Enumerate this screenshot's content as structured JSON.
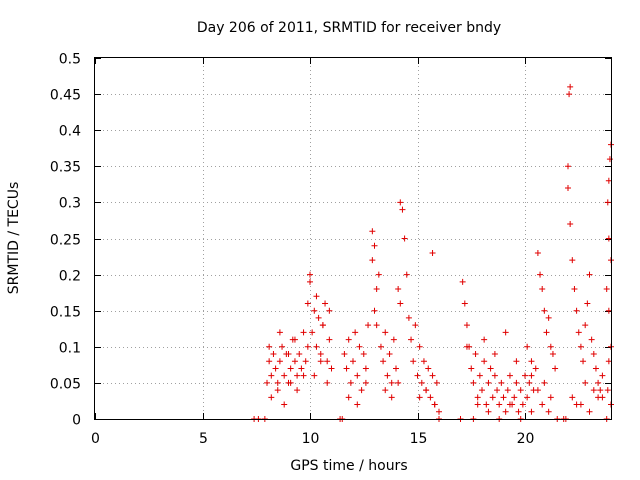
{
  "chart_data": {
    "type": "scatter",
    "title": "Day 206 of 2011, SRMTID for receiver bndy",
    "xlabel": "GPS time / hours",
    "ylabel": "SRMTID / TECUs",
    "xlim": [
      0,
      24
    ],
    "ylim": [
      0,
      0.5
    ],
    "x_ticks": [
      0,
      5,
      10,
      15,
      20
    ],
    "x_tick_labels": [
      "0",
      "5",
      "10",
      "15",
      "20"
    ],
    "y_ticks": [
      0,
      0.05,
      0.1,
      0.15,
      0.2,
      0.25,
      0.3,
      0.35,
      0.4,
      0.45,
      0.5
    ],
    "y_tick_labels": [
      "0",
      "0.05",
      "0.1",
      "0.15",
      "0.2",
      "0.25",
      "0.3",
      "0.35",
      "0.4",
      "0.45",
      "0.5"
    ],
    "grid": true,
    "marker": "plus",
    "series": [
      {
        "name": "SRMTID",
        "color": "#e00000",
        "x": [
          7.4,
          7.6,
          7.9,
          8.1,
          8.0,
          8.1,
          8.2,
          8.3,
          8.4,
          8.5,
          8.6,
          8.7,
          8.8,
          8.9,
          9.0,
          9.1,
          9.2,
          9.3,
          9.4,
          9.5,
          9.6,
          9.7,
          9.8,
          9.9,
          8.2,
          8.5,
          8.8,
          9.1,
          9.4,
          9.7,
          8.6,
          9.0,
          9.3,
          9.9,
          10.0,
          10.0,
          10.1,
          10.2,
          10.3,
          10.4,
          10.5,
          10.6,
          10.7,
          10.8,
          10.9,
          11.0,
          10.2,
          10.5,
          10.8,
          10.3,
          10.6,
          10.9,
          11.4,
          11.5,
          11.6,
          11.7,
          11.8,
          11.9,
          12.0,
          12.1,
          12.2,
          12.3,
          12.4,
          12.5,
          12.6,
          12.7,
          11.8,
          12.2,
          12.6,
          12.9,
          12.9,
          13.0,
          13.1,
          13.2,
          13.0,
          13.1,
          13.3,
          13.4,
          13.5,
          13.6,
          13.7,
          13.8,
          13.9,
          14.0,
          13.5,
          13.8,
          14.1,
          14.2,
          14.3,
          14.1,
          14.2,
          14.4,
          14.5,
          14.6,
          14.7,
          14.8,
          14.9,
          15.0,
          15.1,
          15.2,
          15.3,
          15.4,
          15.5,
          15.6,
          15.7,
          15.8,
          15.9,
          16.0,
          15.1,
          15.4,
          15.8,
          16.0,
          15.7,
          17.0,
          17.1,
          17.2,
          17.3,
          17.4,
          17.5,
          17.6,
          17.7,
          17.8,
          17.9,
          18.0,
          18.1,
          18.2,
          18.3,
          18.4,
          18.5,
          18.6,
          18.7,
          18.8,
          18.9,
          19.0,
          19.1,
          19.2,
          19.3,
          19.4,
          19.5,
          19.6,
          19.7,
          19.8,
          19.9,
          20.0,
          20.1,
          20.2,
          20.3,
          20.4,
          17.3,
          17.8,
          18.3,
          18.8,
          19.3,
          19.8,
          20.3,
          17.6,
          18.1,
          18.6,
          19.1,
          19.6,
          20.1,
          20.5,
          20.6,
          20.7,
          20.8,
          20.9,
          21.0,
          21.1,
          21.2,
          21.3,
          21.4,
          20.3,
          20.6,
          20.9,
          21.2,
          20.8,
          21.1,
          21.5,
          21.8,
          21.9,
          22.0,
          22.0,
          22.05,
          22.1,
          22.1,
          22.2,
          22.3,
          22.4,
          22.5,
          22.6,
          22.7,
          22.8,
          22.9,
          23.0,
          23.1,
          23.2,
          23.3,
          23.4,
          23.5,
          23.6,
          22.2,
          22.6,
          23.0,
          23.4,
          22.4,
          22.8,
          23.2,
          23.6,
          23.8,
          23.85,
          23.9,
          23.95,
          24.0,
          23.9,
          24.0,
          23.8,
          23.9,
          24.0,
          23.9,
          23.85,
          24.0
        ],
        "y": [
          0.0,
          0.0,
          0.0,
          0.08,
          0.05,
          0.1,
          0.06,
          0.09,
          0.07,
          0.05,
          0.08,
          0.1,
          0.06,
          0.09,
          0.05,
          0.07,
          0.11,
          0.08,
          0.06,
          0.09,
          0.07,
          0.12,
          0.08,
          0.1,
          0.03,
          0.04,
          0.02,
          0.05,
          0.04,
          0.06,
          0.12,
          0.09,
          0.11,
          0.16,
          0.19,
          0.2,
          0.12,
          0.15,
          0.1,
          0.14,
          0.09,
          0.13,
          0.16,
          0.08,
          0.11,
          0.07,
          0.06,
          0.08,
          0.05,
          0.17,
          0.13,
          0.15,
          0.0,
          0.0,
          0.09,
          0.07,
          0.11,
          0.05,
          0.08,
          0.12,
          0.06,
          0.1,
          0.04,
          0.09,
          0.07,
          0.13,
          0.03,
          0.02,
          0.05,
          0.26,
          0.22,
          0.24,
          0.18,
          0.2,
          0.15,
          0.13,
          0.1,
          0.08,
          0.12,
          0.06,
          0.09,
          0.05,
          0.11,
          0.07,
          0.04,
          0.03,
          0.05,
          0.3,
          0.29,
          0.18,
          0.16,
          0.25,
          0.2,
          0.14,
          0.11,
          0.08,
          0.13,
          0.06,
          0.1,
          0.05,
          0.08,
          0.04,
          0.07,
          0.03,
          0.06,
          0.02,
          0.05,
          0.01,
          0.03,
          0.04,
          0.02,
          0.0,
          0.23,
          0.0,
          0.19,
          0.16,
          0.13,
          0.1,
          0.07,
          0.05,
          0.09,
          0.03,
          0.06,
          0.04,
          0.08,
          0.02,
          0.05,
          0.07,
          0.03,
          0.06,
          0.04,
          0.02,
          0.05,
          0.03,
          0.01,
          0.04,
          0.06,
          0.02,
          0.03,
          0.05,
          0.01,
          0.04,
          0.02,
          0.06,
          0.03,
          0.05,
          0.08,
          0.04,
          0.1,
          0.02,
          0.01,
          0.0,
          0.02,
          0.0,
          0.01,
          0.0,
          0.11,
          0.09,
          0.12,
          0.08,
          0.1,
          0.07,
          0.23,
          0.2,
          0.18,
          0.15,
          0.12,
          0.14,
          0.1,
          0.09,
          0.07,
          0.06,
          0.04,
          0.05,
          0.03,
          0.02,
          0.01,
          0.0,
          0.0,
          0.0,
          0.35,
          0.32,
          0.45,
          0.46,
          0.27,
          0.22,
          0.18,
          0.15,
          0.12,
          0.1,
          0.08,
          0.13,
          0.16,
          0.2,
          0.11,
          0.09,
          0.07,
          0.05,
          0.04,
          0.06,
          0.03,
          0.02,
          0.01,
          0.03,
          0.02,
          0.05,
          0.04,
          0.03,
          0.0,
          0.3,
          0.33,
          0.36,
          0.38,
          0.25,
          0.22,
          0.18,
          0.15,
          0.1,
          0.08,
          0.04,
          0.02
        ]
      }
    ]
  }
}
